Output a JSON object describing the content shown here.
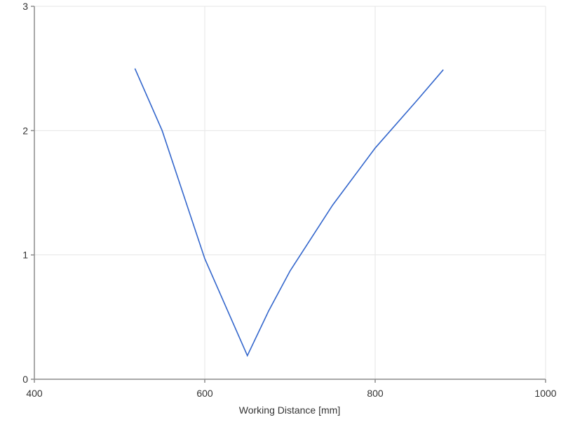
{
  "chart_data": {
    "type": "line",
    "x_label": "Working Distance [mm]",
    "x": [
      518,
      550,
      600,
      625,
      650,
      675,
      700,
      750,
      800,
      850,
      880
    ],
    "series": [
      {
        "color": "#3366cc",
        "values": [
          2.5,
          2.0,
          0.97,
          0.58,
          0.19,
          0.55,
          0.87,
          1.4,
          1.86,
          2.25,
          2.49
        ]
      }
    ],
    "xlim": [
      400,
      1000
    ],
    "xticks": [
      400,
      600,
      800,
      1000
    ],
    "ylim": [
      0,
      3
    ],
    "yticks": [
      0,
      1,
      2,
      3
    ],
    "grid": true
  }
}
